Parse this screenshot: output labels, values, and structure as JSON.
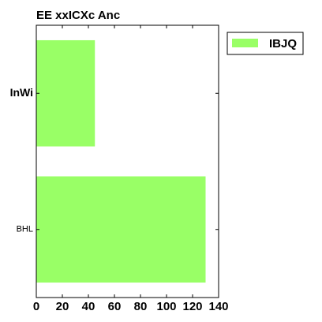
{
  "chart_data": {
    "type": "bar",
    "orientation": "horizontal",
    "title": "EE xxICXc Anc",
    "categories": [
      "InWi",
      "BHL"
    ],
    "series": [
      {
        "name": "IBJQ",
        "values": [
          45,
          130
        ],
        "color": "#99ff66"
      }
    ],
    "xlim": [
      0,
      140
    ],
    "xticks": [
      0,
      20,
      40,
      60,
      80,
      100,
      120,
      140
    ],
    "xtick_labels": [
      "0",
      "20",
      "40",
      "60",
      "80",
      "100",
      "120",
      "140"
    ],
    "xlabel": "",
    "ylabel": "",
    "grid": false,
    "legend_position": "top-right outside"
  }
}
